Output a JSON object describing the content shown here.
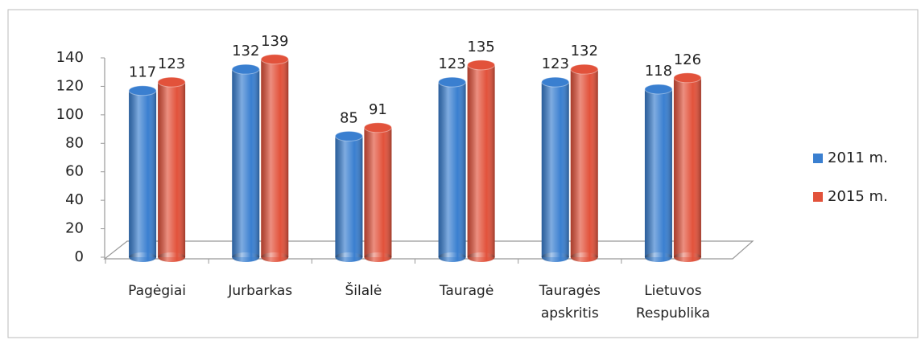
{
  "chart_data": {
    "type": "bar3d",
    "categories": [
      "Pagėgiai",
      "Jurbarkas",
      "Šilalė",
      "Tauragė",
      "Tauragės apskritis",
      "Lietuvos Respublika"
    ],
    "series": [
      {
        "name": "2011 m.",
        "color": "#3a7fd0",
        "values": [
          117,
          132,
          85,
          123,
          123,
          118
        ]
      },
      {
        "name": "2015 m.",
        "color": "#e2523b",
        "values": [
          123,
          139,
          91,
          135,
          132,
          126
        ]
      }
    ],
    "ylim": [
      0,
      140
    ],
    "yticks": [
      0,
      20,
      40,
      60,
      80,
      100,
      120,
      140
    ],
    "grid": false,
    "legend": "right"
  }
}
